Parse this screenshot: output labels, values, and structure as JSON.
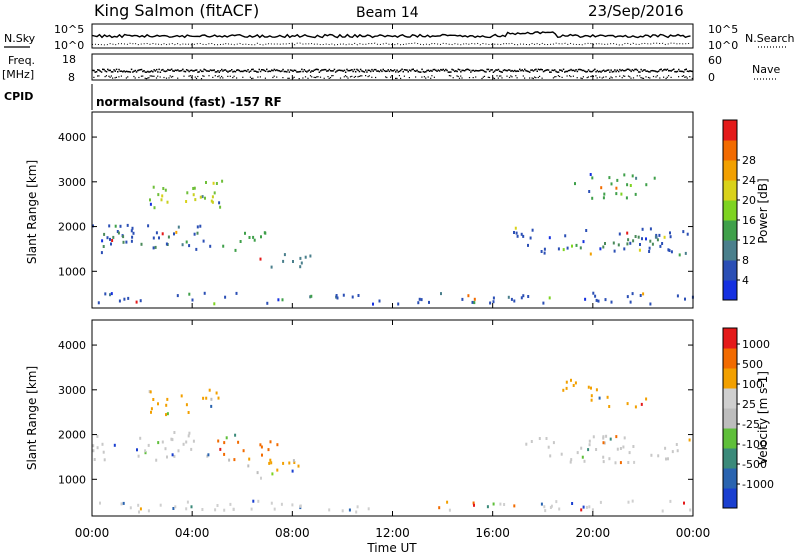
{
  "header": {
    "station": "King Salmon (fitACF)",
    "beam": "Beam 14",
    "date": "23/Sep/2016"
  },
  "side_labels": {
    "nsky": "N.Sky",
    "freq": "Freq.",
    "freq_unit": "[MHz]",
    "cpid": "CPID",
    "nsearch": "N.Search",
    "nave": "Nave"
  },
  "cpid_text": "normalsound (fast) -157 RF",
  "chart_data": [
    {
      "type": "line",
      "panel": "noise",
      "series": [
        {
          "name": "N.Sky",
          "style": "solid"
        },
        {
          "name": "N.Search",
          "style": "dotted"
        }
      ],
      "left_ticks": [
        "10^5",
        "10^0"
      ],
      "right_ticks": [
        "10^5",
        "10^0"
      ]
    },
    {
      "type": "scatter",
      "panel": "freq-nave",
      "left_ticks": [
        "18",
        "8"
      ],
      "right_ticks": [
        "60",
        "0"
      ]
    },
    {
      "type": "heatmap",
      "panel": "power",
      "ylabel": "Slant Range [km]",
      "yticks": [
        1000,
        2000,
        3000,
        4000
      ],
      "ylim": [
        180,
        4560
      ],
      "colorbar": {
        "label": "Power [dB]",
        "ticks": [
          "4",
          "8",
          "12",
          "16",
          "20",
          "24",
          "28"
        ],
        "colors": [
          "#1530e0",
          "#2b4fb5",
          "#4a7f8c",
          "#3fa04a",
          "#7ed321",
          "#d9d21a",
          "#f2a000",
          "#f26b00",
          "#e41a1a"
        ]
      },
      "regions": [
        {
          "t0": 0.0,
          "t1": 4.7,
          "r0": 1450,
          "r1": 2100,
          "color": "#2b4fb5"
        },
        {
          "t0": 0.3,
          "t1": 4.2,
          "r0": 1550,
          "r1": 1900,
          "color": "#4a8a5a"
        },
        {
          "t0": 2.2,
          "t1": 5.2,
          "r0": 2450,
          "r1": 3050,
          "color": "#6fbf3a"
        },
        {
          "t0": 2.6,
          "t1": 4.8,
          "r0": 2550,
          "r1": 2900,
          "color": "#c9d020"
        },
        {
          "t0": 5.0,
          "t1": 7.2,
          "r0": 1500,
          "r1": 1900,
          "color": "#3fa04a"
        },
        {
          "t0": 6.2,
          "t1": 8.8,
          "r0": 1100,
          "r1": 1450,
          "color": "#4a7f8c"
        },
        {
          "t0": 16.8,
          "t1": 24.0,
          "r0": 1400,
          "r1": 2000,
          "color": "#2b4fb5"
        },
        {
          "t0": 18.5,
          "t1": 23.5,
          "r0": 1550,
          "r1": 1850,
          "color": "#4a8a5a"
        },
        {
          "t0": 18.8,
          "t1": 22.5,
          "r0": 2650,
          "r1": 3200,
          "color": "#3fa04a"
        },
        {
          "t0": 0.0,
          "t1": 24.0,
          "r0": 300,
          "r1": 550,
          "color": "#2b4fb5"
        }
      ]
    },
    {
      "type": "heatmap",
      "panel": "velocity",
      "ylabel": "Slant Range [km]",
      "yticks": [
        1000,
        2000,
        3000,
        4000
      ],
      "ylim": [
        180,
        4560
      ],
      "colorbar": {
        "label": "Velocity [m s-1]",
        "ticks": [
          "1000",
          "500",
          "100",
          "25",
          "-25",
          "-100",
          "-500",
          "-1000"
        ],
        "colors": [
          "#1a3fd0",
          "#2a64b0",
          "#3b8a7a",
          "#5fbf3a",
          "#bdbdbd",
          "#cfcfcf",
          "#f2a000",
          "#f26b00",
          "#e41a1a"
        ]
      },
      "regions": [
        {
          "t0": 0.0,
          "t1": 4.7,
          "r0": 1450,
          "r1": 2100,
          "color": "#c8c8c8"
        },
        {
          "t0": 2.2,
          "t1": 5.2,
          "r0": 2450,
          "r1": 3050,
          "color": "#f2a000"
        },
        {
          "t0": 5.0,
          "t1": 7.4,
          "r0": 1450,
          "r1": 2050,
          "color": "#f26b00"
        },
        {
          "t0": 6.2,
          "t1": 8.8,
          "r0": 1150,
          "r1": 1500,
          "color": "#f2a000"
        },
        {
          "t0": 6.5,
          "t1": 8.6,
          "r0": 1050,
          "r1": 1250,
          "color": "#7ed321"
        },
        {
          "t0": 16.8,
          "t1": 24.0,
          "r0": 1400,
          "r1": 2000,
          "color": "#c8c8c8"
        },
        {
          "t0": 18.5,
          "t1": 20.5,
          "r0": 2750,
          "r1": 3300,
          "color": "#f2a000"
        },
        {
          "t0": 20.5,
          "t1": 22.5,
          "r0": 2650,
          "r1": 2900,
          "color": "#f2a000"
        },
        {
          "t0": 0.0,
          "t1": 24.0,
          "r0": 300,
          "r1": 550,
          "color": "#cfcfcf"
        }
      ]
    }
  ],
  "x_axis": {
    "label": "Time UT",
    "xlim": [
      0,
      24
    ],
    "ticks": [
      "00:00",
      "04:00",
      "08:00",
      "12:00",
      "16:00",
      "20:00",
      "00:00"
    ]
  }
}
